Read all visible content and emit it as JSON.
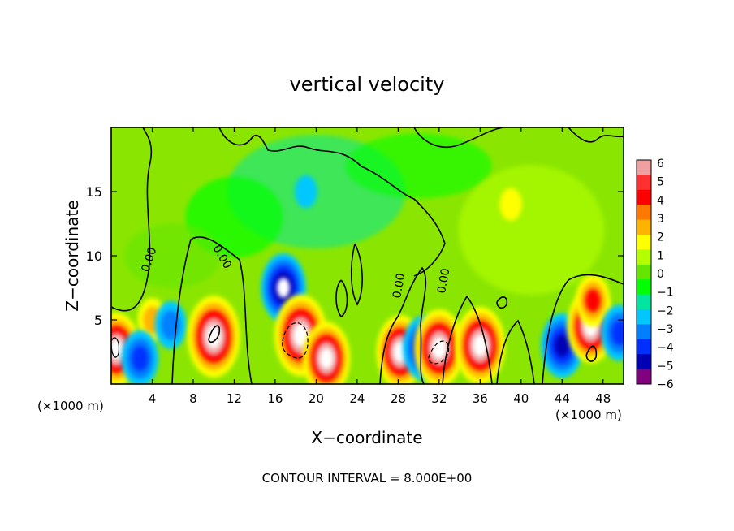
{
  "chart_data": {
    "type": "heatmap",
    "title": "vertical velocity",
    "xlabel": "X−coordinate",
    "ylabel": "Z−coordinate",
    "x_unit_left": "(×1000 m)",
    "x_unit_right": "(×1000 m)",
    "footer": "CONTOUR INTERVAL = 8.000E+00",
    "xlim": [
      0,
      50
    ],
    "ylim": [
      0,
      20
    ],
    "x_ticks": [
      4,
      8,
      12,
      16,
      20,
      24,
      28,
      32,
      36,
      40,
      44,
      48
    ],
    "y_ticks": [
      5,
      10,
      15
    ],
    "contour_labels": [
      "0.00",
      "0.00",
      "0.00",
      "0.00"
    ],
    "colorbar": {
      "min": -6,
      "max": 6,
      "labels": [
        "6",
        "5",
        "4",
        "3",
        "2",
        "1",
        "0",
        "−1",
        "−2",
        "−3",
        "−4",
        "−5",
        "−6"
      ],
      "colors": [
        "#f0a0a0",
        "#ff3030",
        "#ff0000",
        "#ff7800",
        "#ffb400",
        "#ffff00",
        "#b4ff00",
        "#64e600",
        "#00ff00",
        "#00e6a0",
        "#00c8ff",
        "#0080ff",
        "#0030ff",
        "#0000b4",
        "#800080"
      ]
    },
    "features": [
      {
        "kind": "updraft",
        "x": 0.5,
        "z": 2.7,
        "peak": 6.0
      },
      {
        "kind": "updraft",
        "x": 4.0,
        "z": 5.0,
        "peak": 2.5
      },
      {
        "kind": "downdraft",
        "x": 2.8,
        "z": 2.0,
        "peak": -4.0
      },
      {
        "kind": "downdraft",
        "x": 5.8,
        "z": 4.6,
        "peak": -3.0
      },
      {
        "kind": "updraft",
        "x": 10.0,
        "z": 3.7,
        "peak": 7.0
      },
      {
        "kind": "downdraft",
        "x": 16.8,
        "z": 7.5,
        "peak": -5.5
      },
      {
        "kind": "updraft",
        "x": 18.5,
        "z": 3.8,
        "peak": 7.0
      },
      {
        "kind": "updraft",
        "x": 21.0,
        "z": 2.0,
        "peak": 6.0
      },
      {
        "kind": "updraft",
        "x": 28.2,
        "z": 2.5,
        "peak": 6.0
      },
      {
        "kind": "downdraft",
        "x": 30.5,
        "z": 2.8,
        "peak": -5.0
      },
      {
        "kind": "updraft",
        "x": 32.0,
        "z": 2.8,
        "peak": 6.5
      },
      {
        "kind": "updraft",
        "x": 36.0,
        "z": 3.0,
        "peak": 6.5
      },
      {
        "kind": "downdraft",
        "x": 44.0,
        "z": 3.0,
        "peak": -5.0
      },
      {
        "kind": "updraft",
        "x": 46.8,
        "z": 4.5,
        "peak": 6.0
      },
      {
        "kind": "updraft",
        "x": 47.0,
        "z": 6.5,
        "peak": 3.5
      },
      {
        "kind": "downdraft",
        "x": 49.6,
        "z": 4.0,
        "peak": -4.0
      },
      {
        "kind": "downdraft",
        "x": 19.0,
        "z": 15.0,
        "peak": -1.2
      },
      {
        "kind": "updraft",
        "x": 39.0,
        "z": 14.0,
        "peak": 1.2
      }
    ]
  }
}
